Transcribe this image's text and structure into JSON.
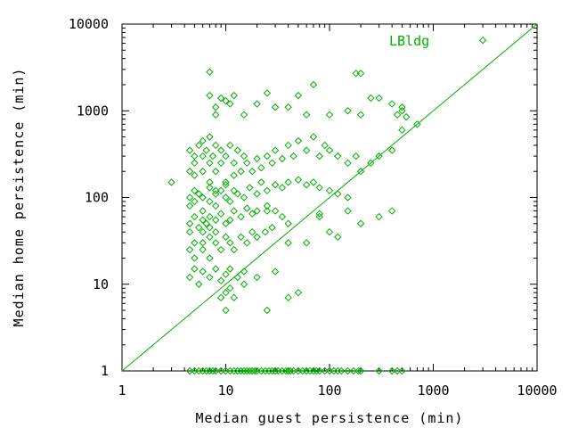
{
  "chart_data": {
    "type": "scatter",
    "title": "",
    "xlabel": "Median guest persistence (min)",
    "ylabel": "Median home persistence (min)",
    "x_scale": "log",
    "y_scale": "log",
    "xlim": [
      1,
      10000
    ],
    "ylim": [
      1,
      10000
    ],
    "x_ticks": [
      1,
      10,
      100,
      1000,
      10000
    ],
    "y_ticks": [
      1,
      10,
      100,
      1000,
      10000
    ],
    "x_tick_labels": [
      "1",
      "10",
      "100",
      "1000",
      "10000"
    ],
    "y_tick_labels": [
      "1",
      "10",
      "100",
      "1000",
      "10000"
    ],
    "grid": false,
    "legend_position": "top-right",
    "series_color": "#00b000",
    "marker": "diamond",
    "reference_line": {
      "description": "y = x",
      "from": [
        1,
        1
      ],
      "to": [
        10000,
        10000
      ]
    },
    "series": [
      {
        "name": "LBldg",
        "x": [
          3,
          4.5,
          4.5,
          5,
          5,
          5,
          5.5,
          6,
          6,
          6,
          6.5,
          7,
          7,
          7,
          7.5,
          8,
          8,
          8,
          9,
          9,
          10,
          10,
          11,
          12,
          12,
          13,
          14,
          15,
          16,
          18,
          20,
          22,
          25,
          28,
          30,
          35,
          40,
          45,
          50,
          60,
          70,
          80,
          90,
          100,
          120,
          150,
          180,
          200,
          250,
          300,
          400,
          500,
          700,
          4.5,
          4.5,
          5,
          5,
          5.5,
          6,
          6,
          7,
          7,
          8,
          8,
          9,
          10,
          10,
          11,
          12,
          13,
          15,
          17,
          20,
          22,
          25,
          30,
          35,
          40,
          50,
          60,
          70,
          80,
          100,
          120,
          150,
          4.5,
          4.5,
          5,
          5.5,
          6,
          6,
          6.5,
          7,
          7,
          8,
          8,
          9,
          10,
          11,
          12,
          14,
          16,
          18,
          20,
          25,
          30,
          35,
          40,
          4.5,
          5,
          5,
          6,
          6,
          7,
          7,
          8,
          9,
          10,
          11,
          12,
          14,
          16,
          18,
          20,
          24,
          28,
          4.5,
          5,
          5.5,
          6,
          7,
          8,
          9,
          10,
          11,
          13,
          15,
          7,
          8,
          9,
          10,
          12,
          15,
          20,
          25,
          30,
          40,
          50,
          60,
          70,
          100,
          150,
          200,
          250,
          300,
          400,
          450,
          500,
          550,
          9,
          10,
          11,
          12,
          15,
          20,
          25,
          30,
          40,
          50,
          60,
          80,
          100,
          150,
          200,
          300,
          400,
          40,
          25,
          200,
          180,
          500,
          3000,
          120,
          80,
          7,
          8,
          11,
          10,
          4.5,
          5,
          5.5,
          6,
          6.5,
          7,
          7.5,
          8,
          9,
          10,
          11,
          12,
          13,
          14,
          15,
          16,
          17,
          18,
          19,
          20,
          22,
          24,
          26,
          28,
          30,
          32,
          35,
          38,
          40,
          42,
          45,
          50,
          55,
          60,
          65,
          70,
          75,
          80,
          90,
          100,
          110,
          120,
          130,
          150,
          170,
          190,
          200,
          300,
          400,
          450,
          500
        ],
        "y": [
          150,
          200,
          350,
          300,
          250,
          180,
          400,
          450,
          300,
          200,
          350,
          500,
          250,
          150,
          300,
          400,
          200,
          120,
          350,
          250,
          300,
          150,
          400,
          250,
          180,
          350,
          200,
          300,
          250,
          200,
          280,
          220,
          300,
          250,
          350,
          280,
          400,
          300,
          450,
          350,
          500,
          300,
          400,
          350,
          300,
          250,
          300,
          200,
          250,
          300,
          350,
          600,
          700,
          100,
          80,
          120,
          90,
          110,
          100,
          70,
          130,
          90,
          110,
          80,
          120,
          100,
          140,
          90,
          120,
          110,
          100,
          130,
          110,
          150,
          120,
          140,
          130,
          150,
          160,
          140,
          150,
          130,
          120,
          110,
          100,
          50,
          40,
          60,
          45,
          55,
          40,
          50,
          60,
          45,
          55,
          40,
          65,
          50,
          55,
          70,
          60,
          75,
          65,
          70,
          80,
          70,
          60,
          50,
          25,
          30,
          20,
          30,
          25,
          35,
          20,
          30,
          25,
          35,
          30,
          25,
          35,
          30,
          40,
          35,
          40,
          45,
          12,
          15,
          10,
          14,
          12,
          15,
          11,
          13,
          15,
          12,
          14,
          1500,
          1100,
          1400,
          1300,
          1500,
          900,
          1200,
          1600,
          1100,
          1100,
          1500,
          900,
          2000,
          900,
          1000,
          900,
          1400,
          1400,
          1200,
          900,
          1100,
          850,
          7,
          8,
          9,
          7,
          10,
          12,
          5,
          14,
          7,
          8,
          30,
          60,
          40,
          70,
          50,
          60,
          70,
          30,
          70,
          2700,
          2700,
          1000,
          6500,
          35,
          65,
          2800,
          900,
          1200,
          5,
          1,
          1,
          1,
          1,
          1,
          1,
          1,
          1,
          1,
          1,
          1,
          1,
          1,
          1,
          1,
          1,
          1,
          1,
          1,
          1,
          1,
          1,
          1,
          1,
          1,
          1,
          1,
          1,
          1,
          1,
          1,
          1,
          1,
          1,
          1,
          1,
          1,
          1,
          1,
          1,
          1,
          1,
          1,
          1,
          1,
          1,
          1,
          1,
          1,
          1,
          1
        ]
      }
    ]
  }
}
